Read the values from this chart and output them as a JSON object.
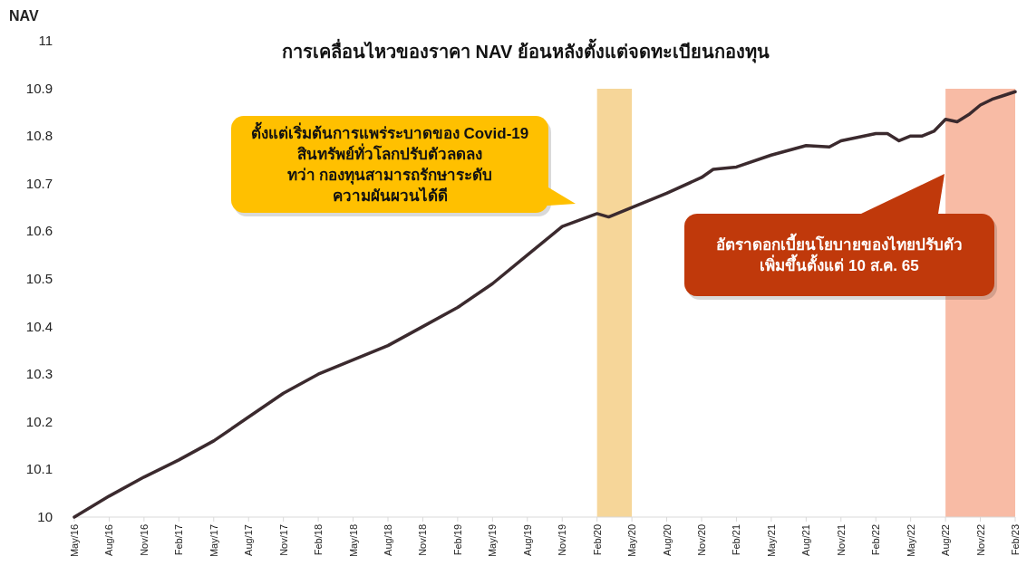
{
  "chart_data": {
    "type": "line",
    "title": "การเคลื่อนไหวของราคา NAV ย้อนหลังตั้งแต่จดทะเบียนกองทุน",
    "ylabel": "NAV",
    "x": [
      "2016-05",
      "2016-08",
      "2016-11",
      "2017-02",
      "2017-05",
      "2017-08",
      "2017-11",
      "2018-02",
      "2018-05",
      "2018-08",
      "2018-11",
      "2019-02",
      "2019-05",
      "2019-08",
      "2019-11",
      "2020-02",
      "2020-03",
      "2020-05",
      "2020-08",
      "2020-11",
      "2020-12",
      "2021-02",
      "2021-05",
      "2021-08",
      "2021-10",
      "2021-11",
      "2022-02",
      "2022-03",
      "2022-04",
      "2022-05",
      "2022-06",
      "2022-07",
      "2022-08",
      "2022-09",
      "2022-10",
      "2022-11",
      "2022-12",
      "2023-01",
      "2023-02"
    ],
    "series": [
      {
        "color": "#3b2a2e",
        "values": [
          10.0,
          10.044,
          10.084,
          10.12,
          10.16,
          10.21,
          10.26,
          10.3,
          10.33,
          10.36,
          10.4,
          10.44,
          10.49,
          10.55,
          10.61,
          10.637,
          10.63,
          10.65,
          10.68,
          10.713,
          10.73,
          10.735,
          10.76,
          10.78,
          10.777,
          10.79,
          10.805,
          10.805,
          10.79,
          10.8,
          10.8,
          10.81,
          10.835,
          10.83,
          10.845,
          10.865,
          10.877,
          10.885,
          10.893
        ]
      }
    ],
    "xlim": [
      "2016-05",
      "2023-02"
    ],
    "xticks": [
      {
        "value": "2016-05",
        "label": "May/16"
      },
      {
        "value": "2016-08",
        "label": "Aug/16"
      },
      {
        "value": "2016-11",
        "label": "Nov/16"
      },
      {
        "value": "2017-02",
        "label": "Feb/17"
      },
      {
        "value": "2017-05",
        "label": "May/17"
      },
      {
        "value": "2017-08",
        "label": "Aug/17"
      },
      {
        "value": "2017-11",
        "label": "Nov/17"
      },
      {
        "value": "2018-02",
        "label": "Feb/18"
      },
      {
        "value": "2018-05",
        "label": "May/18"
      },
      {
        "value": "2018-08",
        "label": "Aug/18"
      },
      {
        "value": "2018-11",
        "label": "Nov/18"
      },
      {
        "value": "2019-02",
        "label": "Feb/19"
      },
      {
        "value": "2019-05",
        "label": "May/19"
      },
      {
        "value": "2019-08",
        "label": "Aug/19"
      },
      {
        "value": "2019-11",
        "label": "Nov/19"
      },
      {
        "value": "2020-02",
        "label": "Feb/20"
      },
      {
        "value": "2020-05",
        "label": "May/20"
      },
      {
        "value": "2020-08",
        "label": "Aug/20"
      },
      {
        "value": "2020-11",
        "label": "Nov/20"
      },
      {
        "value": "2021-02",
        "label": "Feb/21"
      },
      {
        "value": "2021-05",
        "label": "May/21"
      },
      {
        "value": "2021-08",
        "label": "Aug/21"
      },
      {
        "value": "2021-11",
        "label": "Nov/21"
      },
      {
        "value": "2022-02",
        "label": "Feb/22"
      },
      {
        "value": "2022-05",
        "label": "May/22"
      },
      {
        "value": "2022-08",
        "label": "Aug/22"
      },
      {
        "value": "2022-11",
        "label": "Nov/22"
      },
      {
        "value": "2023-02",
        "label": "Feb/23"
      }
    ],
    "ylim": [
      10,
      11
    ],
    "yticks": [
      10,
      10.1,
      10.2,
      10.3,
      10.4,
      10.5,
      10.6,
      10.7,
      10.8,
      10.9,
      11
    ],
    "bands": [
      {
        "axis": "x",
        "from": "2020-02",
        "to": "2020-05",
        "color": "#f6d699"
      },
      {
        "axis": "x",
        "from": "2022-08",
        "to": "2023-02",
        "color": "#f8bba5"
      }
    ],
    "annotations": [
      "ตั้งแต่เริ่มต้นการแพร่ระบาดของ Covid-19\nสินทรัพย์ทั่วโลกปรับตัวลดลง\nทว่า กองทุนสามารถรักษาระดับ\nความผันผวนได้ดี",
      "อัตราดอกเบี้ยนโยบายของไทยปรับตัว\nเพิ่มขึ้นตั้งแต่ 10 ส.ค. 65"
    ],
    "line_style": "solid",
    "marker": "none"
  }
}
